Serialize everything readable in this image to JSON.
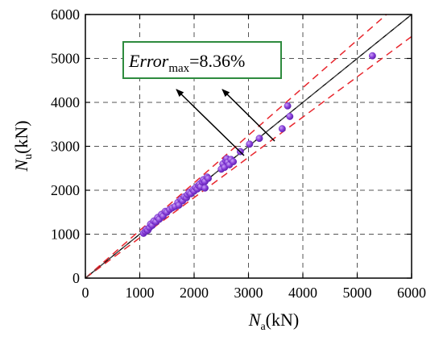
{
  "chart_data": {
    "type": "scatter",
    "title": "",
    "xlabel": {
      "main": "N",
      "sub": "a",
      "unit": "(kN)"
    },
    "ylabel": {
      "main": "N",
      "sub": "u",
      "unit": "(kN)"
    },
    "xlim": [
      0,
      6000
    ],
    "ylim": [
      0,
      6000
    ],
    "xticks": [
      "0",
      "1000",
      "2000",
      "3000",
      "4000",
      "5000",
      "6000"
    ],
    "yticks": [
      "0",
      "1000",
      "2000",
      "3000",
      "4000",
      "5000",
      "6000"
    ],
    "grid": true,
    "reference_lines": [
      {
        "kind": "y = x",
        "slope": 1.0,
        "style": "solid",
        "color": "#000000"
      },
      {
        "kind": "upper bound",
        "slope": 1.0836,
        "style": "dashed",
        "color": "#e8262d"
      },
      {
        "kind": "lower bound",
        "slope": 0.9164,
        "style": "dashed",
        "color": "#e8262d"
      },
      {
        "kind": "guide",
        "slope": 1.0,
        "style": "dashed",
        "color": "#4a4a4a"
      }
    ],
    "annotation": {
      "main": "Error",
      "sub": "max",
      "value": "=8.36%",
      "border_color": "#2e8b3e"
    },
    "marker_color": "#8a3fdc",
    "series": [
      {
        "points": [
          [
            1070,
            1020
          ],
          [
            1100,
            1060
          ],
          [
            1120,
            1110
          ],
          [
            1150,
            1090
          ],
          [
            1180,
            1150
          ],
          [
            1200,
            1230
          ],
          [
            1230,
            1200
          ],
          [
            1260,
            1300
          ],
          [
            1300,
            1280
          ],
          [
            1330,
            1380
          ],
          [
            1360,
            1340
          ],
          [
            1400,
            1450
          ],
          [
            1430,
            1410
          ],
          [
            1470,
            1520
          ],
          [
            1500,
            1500
          ],
          [
            1550,
            1560
          ],
          [
            1600,
            1600
          ],
          [
            1650,
            1630
          ],
          [
            1700,
            1720
          ],
          [
            1720,
            1660
          ],
          [
            1760,
            1790
          ],
          [
            1790,
            1760
          ],
          [
            1820,
            1850
          ],
          [
            1860,
            1830
          ],
          [
            1880,
            1900
          ],
          [
            1910,
            1950
          ],
          [
            1940,
            1920
          ],
          [
            1980,
            2010
          ],
          [
            2000,
            1980
          ],
          [
            2030,
            2060
          ],
          [
            2060,
            2030
          ],
          [
            2080,
            2110
          ],
          [
            2100,
            2140
          ],
          [
            2120,
            2080
          ],
          [
            2150,
            2190
          ],
          [
            2170,
            2240
          ],
          [
            2200,
            2200
          ],
          [
            2240,
            2300
          ],
          [
            2200,
            2050
          ],
          [
            2260,
            2270
          ],
          [
            2500,
            2480
          ],
          [
            2530,
            2600
          ],
          [
            2560,
            2520
          ],
          [
            2580,
            2680
          ],
          [
            2600,
            2720
          ],
          [
            2620,
            2640
          ],
          [
            2650,
            2580
          ],
          [
            2680,
            2700
          ],
          [
            2720,
            2650
          ],
          [
            2850,
            2880
          ],
          [
            3020,
            3050
          ],
          [
            3200,
            3180
          ],
          [
            3620,
            3400
          ],
          [
            3720,
            3920
          ],
          [
            3760,
            3680
          ],
          [
            5280,
            5060
          ]
        ]
      }
    ]
  }
}
